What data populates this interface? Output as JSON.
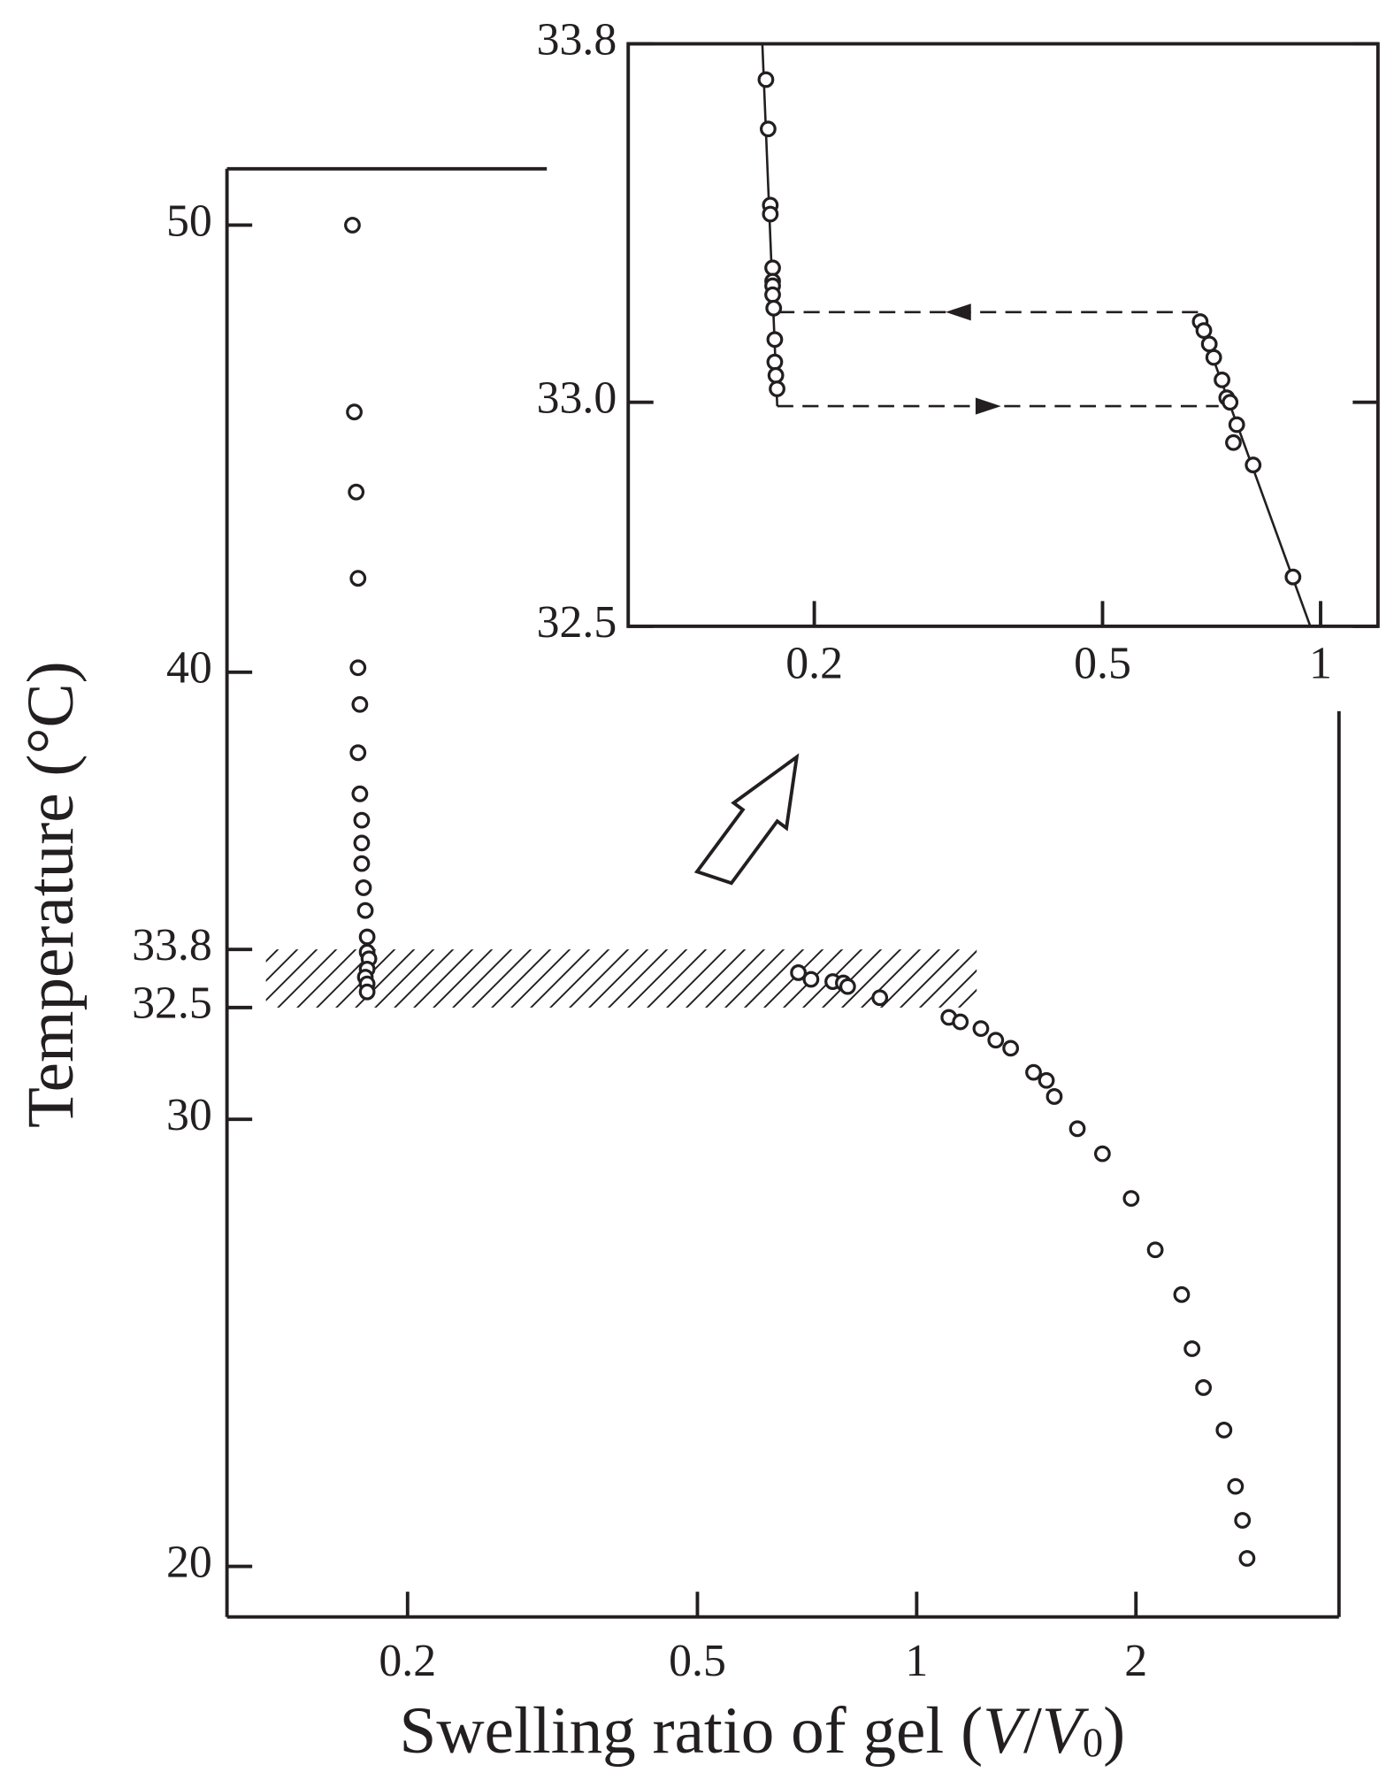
{
  "chart_data": [
    {
      "type": "scatter",
      "xlog": true,
      "xlabel": [
        "Swelling ratio of gel (",
        "V",
        "/",
        "V",
        "0",
        ")"
      ],
      "ylabel": "Temperature  (°C)",
      "xlim": [
        0.113,
        3.8
      ],
      "ylim": [
        18.87,
        51.26
      ],
      "xticks": [
        0.2,
        0.5,
        1,
        2
      ],
      "yticks": [
        20,
        30,
        32.5,
        33.8,
        40,
        50
      ],
      "series": [
        {
          "color": "#231f20",
          "x": [
            0.168,
            0.169,
            0.17,
            0.171,
            0.171,
            0.172,
            0.171,
            0.172,
            0.173,
            0.173,
            0.173,
            0.174,
            0.175,
            0.176,
            0.176,
            0.177,
            0.176,
            0.175,
            0.176,
            0.176,
            0.688,
            0.716,
            0.767,
            0.793,
            0.804,
            0.89,
            1.107,
            1.148,
            1.225,
            1.284,
            1.346,
            1.447,
            1.507,
            1.545,
            1.662,
            1.799,
            1.97,
            2.126,
            2.311,
            2.388,
            2.476,
            2.642,
            2.74,
            2.801,
            2.842
          ],
          "values": [
            50,
            45.82,
            44.03,
            42.1,
            40.1,
            39.28,
            38.2,
            37.28,
            36.69,
            36.18,
            35.72,
            35.18,
            34.67,
            34.08,
            33.74,
            33.59,
            33.36,
            33.18,
            33.03,
            32.85,
            33.28,
            33.13,
            33.08,
            33.05,
            32.97,
            32.72,
            32.28,
            32.18,
            32.03,
            31.77,
            31.59,
            31.05,
            30.87,
            30.51,
            29.79,
            29.23,
            28.23,
            27.08,
            26.08,
            24.87,
            24.0,
            23.05,
            21.79,
            21.03,
            20.18
          ]
        }
      ]
    },
    {
      "type": "scatter",
      "xlog": true,
      "xlim": [
        0.1107,
        1.2
      ],
      "ylim": [
        32.5,
        33.8
      ],
      "xticks": [
        0.2,
        0.5,
        1
      ],
      "yticks": [
        {
          "value": 32.5,
          "label": "32.5"
        },
        {
          "value": 33.0,
          "label": "33.0"
        },
        33.8
      ],
      "series": [
        {
          "color": "#231f20",
          "x": [
            0.1715,
            0.1727,
            0.1739,
            0.1739,
            0.1752,
            0.1752,
            0.1752,
            0.1752,
            0.1758,
            0.1764,
            0.1764,
            0.177,
            0.1777,
            0.682,
            0.69,
            0.702,
            0.712,
            0.731,
            0.742,
            0.75,
            0.766,
            0.758,
            0.807,
            0.916
          ],
          "values": [
            33.72,
            33.61,
            33.44,
            33.42,
            33.3,
            33.27,
            33.26,
            33.24,
            33.21,
            33.14,
            33.09,
            33.06,
            33.03,
            33.18,
            33.16,
            33.13,
            33.1,
            33.05,
            33.01,
            33.0,
            32.95,
            32.91,
            32.86,
            32.61
          ]
        }
      ]
    }
  ]
}
